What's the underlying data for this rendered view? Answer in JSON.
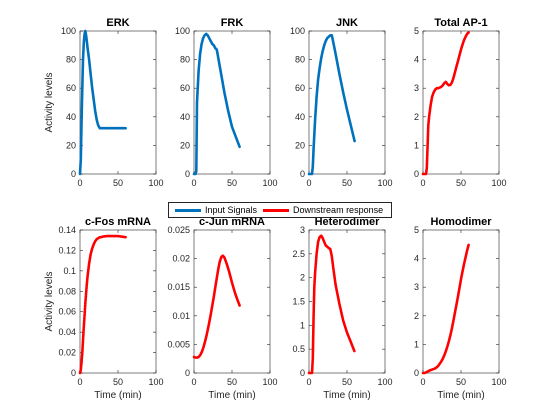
{
  "chart_data": [
    {
      "type": "line",
      "title": "ERK",
      "ylabel": "Activity levels",
      "xlabel": "",
      "xlim": [
        0,
        100
      ],
      "ylim": [
        0,
        100
      ],
      "xticks": [
        "0",
        "50",
        "100"
      ],
      "yticks": [
        "0",
        "20",
        "40",
        "60",
        "80",
        "100"
      ],
      "series": [
        {
          "name": "Input Signals",
          "color": "#0072BD",
          "x": [
            0,
            1,
            2,
            3,
            4,
            5,
            6,
            7,
            8,
            9,
            10,
            12,
            14,
            16,
            18,
            20,
            22,
            24,
            26,
            28,
            30,
            35,
            40,
            45,
            50,
            55,
            60
          ],
          "y": [
            0,
            10,
            35,
            60,
            80,
            92,
            98,
            100,
            97,
            93,
            88,
            80,
            70,
            60,
            52,
            44,
            38,
            34,
            32,
            32,
            32,
            32,
            32,
            32,
            32,
            32,
            32
          ]
        }
      ]
    },
    {
      "type": "line",
      "title": "FRK",
      "ylabel": "",
      "xlabel": "",
      "xlim": [
        0,
        100
      ],
      "ylim": [
        0,
        100
      ],
      "xticks": [
        "0",
        "50",
        "100"
      ],
      "yticks": [
        "0",
        "20",
        "40",
        "60",
        "80",
        "100"
      ],
      "series": [
        {
          "name": "Input Signals",
          "color": "#0072BD",
          "x": [
            0,
            1,
            2,
            3,
            4,
            6,
            8,
            10,
            12,
            14,
            16,
            18,
            20,
            22,
            24,
            26,
            28,
            30,
            35,
            40,
            45,
            50,
            55,
            60
          ],
          "y": [
            0,
            0,
            0,
            2,
            50,
            72,
            84,
            91,
            95,
            97,
            98,
            97,
            95,
            93,
            91,
            90,
            88,
            87,
            72,
            57,
            44,
            33,
            26,
            19
          ]
        }
      ]
    },
    {
      "type": "line",
      "title": "JNK",
      "ylabel": "",
      "xlabel": "",
      "xlim": [
        0,
        100
      ],
      "ylim": [
        0,
        100
      ],
      "xticks": [
        "0",
        "50",
        "100"
      ],
      "yticks": [
        "0",
        "20",
        "40",
        "60",
        "80",
        "100"
      ],
      "series": [
        {
          "name": "Input Signals",
          "color": "#0072BD",
          "x": [
            0,
            2,
            4,
            5,
            6,
            8,
            10,
            12,
            14,
            16,
            18,
            20,
            22,
            24,
            26,
            28,
            30,
            32,
            35,
            40,
            45,
            50,
            55,
            60
          ],
          "y": [
            0,
            0,
            0,
            5,
            18,
            38,
            54,
            66,
            74,
            81,
            86,
            90,
            93,
            95,
            96,
            97,
            97,
            92,
            84,
            70,
            57,
            45,
            34,
            23
          ]
        }
      ]
    },
    {
      "type": "line",
      "title": "Total AP-1",
      "ylabel": "",
      "xlabel": "",
      "xlim": [
        0,
        100
      ],
      "ylim": [
        0,
        5
      ],
      "xticks": [
        "0",
        "50",
        "100"
      ],
      "yticks": [
        "0",
        "1",
        "2",
        "3",
        "4",
        "5"
      ],
      "series": [
        {
          "name": "Downstream response",
          "color": "#FF0000",
          "x": [
            0,
            2,
            4,
            5,
            6,
            7,
            8,
            10,
            12,
            14,
            16,
            18,
            20,
            22,
            24,
            26,
            28,
            30,
            32,
            34,
            36,
            38,
            40,
            42,
            44,
            46,
            48,
            50,
            52,
            54,
            56,
            58,
            60
          ],
          "y": [
            0,
            0,
            0,
            0.2,
            1.0,
            1.7,
            2.0,
            2.4,
            2.7,
            2.85,
            2.95,
            3.0,
            3.0,
            3.02,
            3.05,
            3.1,
            3.18,
            3.22,
            3.15,
            3.1,
            3.12,
            3.2,
            3.35,
            3.55,
            3.75,
            3.95,
            4.15,
            4.35,
            4.52,
            4.68,
            4.8,
            4.9,
            4.95
          ]
        }
      ]
    },
    {
      "type": "line",
      "title": "c-Fos mRNA",
      "ylabel": "Activity levels",
      "xlabel": "Time (min)",
      "xlim": [
        0,
        100
      ],
      "ylim": [
        0,
        0.14
      ],
      "xticks": [
        "0",
        "50",
        "100"
      ],
      "yticks": [
        "0",
        "0.02",
        "0.04",
        "0.06",
        "0.08",
        "0.1",
        "0.12",
        "0.14"
      ],
      "series": [
        {
          "name": "Downstream response",
          "color": "#FF0000",
          "x": [
            0,
            1,
            2,
            3,
            4,
            5,
            6,
            7,
            8,
            9,
            10,
            12,
            14,
            16,
            18,
            20,
            22,
            24,
            26,
            28,
            30,
            35,
            40,
            45,
            50,
            55,
            60
          ],
          "y": [
            0,
            0.003,
            0.01,
            0.02,
            0.032,
            0.045,
            0.057,
            0.068,
            0.078,
            0.087,
            0.095,
            0.107,
            0.116,
            0.122,
            0.126,
            0.129,
            0.131,
            0.132,
            0.133,
            0.133,
            0.1335,
            0.134,
            0.134,
            0.134,
            0.134,
            0.1335,
            0.133
          ]
        }
      ]
    },
    {
      "type": "line",
      "title": "c-Jun mRNA",
      "ylabel": "",
      "xlabel": "Time (min)",
      "xlim": [
        0,
        100
      ],
      "ylim": [
        0,
        0.025
      ],
      "xticks": [
        "0",
        "50",
        "100"
      ],
      "yticks": [
        "0",
        "0.005",
        "0.01",
        "0.015",
        "0.02",
        "0.025"
      ],
      "series": [
        {
          "name": "Downstream response",
          "color": "#FF0000",
          "x": [
            0,
            2,
            4,
            6,
            8,
            10,
            12,
            14,
            16,
            18,
            20,
            22,
            24,
            26,
            28,
            30,
            32,
            34,
            36,
            38,
            40,
            42,
            44,
            46,
            48,
            50,
            52,
            54,
            56,
            58,
            60
          ],
          "y": [
            0.0028,
            0.0027,
            0.0027,
            0.0028,
            0.0031,
            0.0036,
            0.0043,
            0.0052,
            0.0063,
            0.0075,
            0.0088,
            0.0102,
            0.0117,
            0.0133,
            0.015,
            0.0166,
            0.0182,
            0.0195,
            0.0203,
            0.0205,
            0.0202,
            0.0195,
            0.0187,
            0.0178,
            0.0168,
            0.0158,
            0.0149,
            0.014,
            0.0132,
            0.0125,
            0.0118
          ]
        }
      ]
    },
    {
      "type": "line",
      "title": "Heterodimer",
      "ylabel": "",
      "xlabel": "Time (min)",
      "xlim": [
        0,
        100
      ],
      "ylim": [
        0,
        3
      ],
      "xticks": [
        "0",
        "50",
        "100"
      ],
      "yticks": [
        "0",
        "0.5",
        "1",
        "1.5",
        "2",
        "2.5",
        "3"
      ],
      "series": [
        {
          "name": "Downstream response",
          "color": "#FF0000",
          "x": [
            0,
            2,
            4,
            5,
            6,
            7,
            8,
            10,
            12,
            14,
            16,
            18,
            20,
            22,
            24,
            26,
            28,
            30,
            32,
            35,
            40,
            45,
            50,
            55,
            60
          ],
          "y": [
            0,
            0,
            0,
            0.3,
            1.2,
            1.8,
            2.1,
            2.5,
            2.75,
            2.85,
            2.88,
            2.83,
            2.75,
            2.68,
            2.65,
            2.62,
            2.6,
            2.45,
            2.2,
            1.85,
            1.45,
            1.1,
            0.85,
            0.65,
            0.45
          ]
        }
      ]
    },
    {
      "type": "line",
      "title": "Homodimer",
      "ylabel": "",
      "xlabel": "Time (min)",
      "xlim": [
        0,
        100
      ],
      "ylim": [
        0,
        5
      ],
      "xticks": [
        "0",
        "50",
        "100"
      ],
      "yticks": [
        "0",
        "1",
        "2",
        "3",
        "4",
        "5"
      ],
      "series": [
        {
          "name": "Downstream response",
          "color": "#FF0000",
          "x": [
            0,
            2,
            4,
            6,
            8,
            10,
            12,
            14,
            16,
            18,
            20,
            22,
            24,
            26,
            28,
            30,
            32,
            34,
            36,
            38,
            40,
            42,
            44,
            46,
            48,
            50,
            52,
            54,
            56,
            58,
            60
          ],
          "y": [
            0,
            0,
            0.02,
            0.05,
            0.08,
            0.1,
            0.12,
            0.14,
            0.16,
            0.2,
            0.25,
            0.32,
            0.4,
            0.5,
            0.62,
            0.76,
            0.92,
            1.1,
            1.32,
            1.56,
            1.82,
            2.1,
            2.38,
            2.68,
            2.98,
            3.28,
            3.55,
            3.8,
            4.05,
            4.28,
            4.48
          ]
        }
      ]
    }
  ],
  "legend": {
    "placement": "center",
    "entries": [
      {
        "label": "Input Signals",
        "color": "#0072BD"
      },
      {
        "label": "Downstream response",
        "color": "#FF0000"
      }
    ]
  }
}
